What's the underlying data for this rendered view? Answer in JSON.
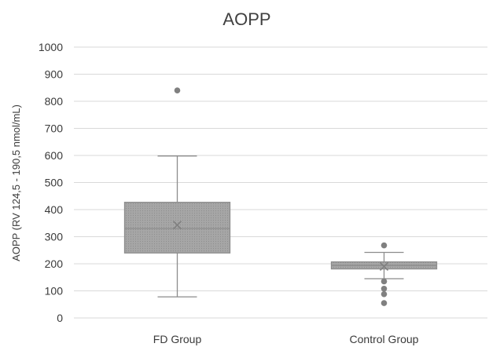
{
  "chart_data": {
    "type": "box",
    "title": "AOPP",
    "ylabel": "AOPP (RV 124,5 - 190,5 nmol/mL)",
    "ylim": [
      0,
      1000
    ],
    "yticks": [
      0,
      100,
      200,
      300,
      400,
      500,
      600,
      700,
      800,
      900,
      1000
    ],
    "grid": true,
    "categories": [
      "FD Group",
      "Control Group"
    ],
    "boxes": [
      {
        "category": "FD Group",
        "min": 78,
        "q1": 240,
        "median": 330,
        "q3": 427,
        "max": 598,
        "mean": 343,
        "outliers": [
          840
        ]
      },
      {
        "category": "Control Group",
        "min": 145,
        "q1": 181,
        "median": 194,
        "q3": 207,
        "max": 242,
        "mean": 190,
        "outliers": [
          268,
          135,
          108,
          88,
          55
        ]
      }
    ],
    "colors": {
      "box_fill": "#a6a6a6",
      "box_stroke": "#8c8c8c",
      "whisker": "#8c8c8c",
      "grid": "#d9d9d9",
      "marker": "#808080",
      "text": "#3a3a3a"
    }
  }
}
